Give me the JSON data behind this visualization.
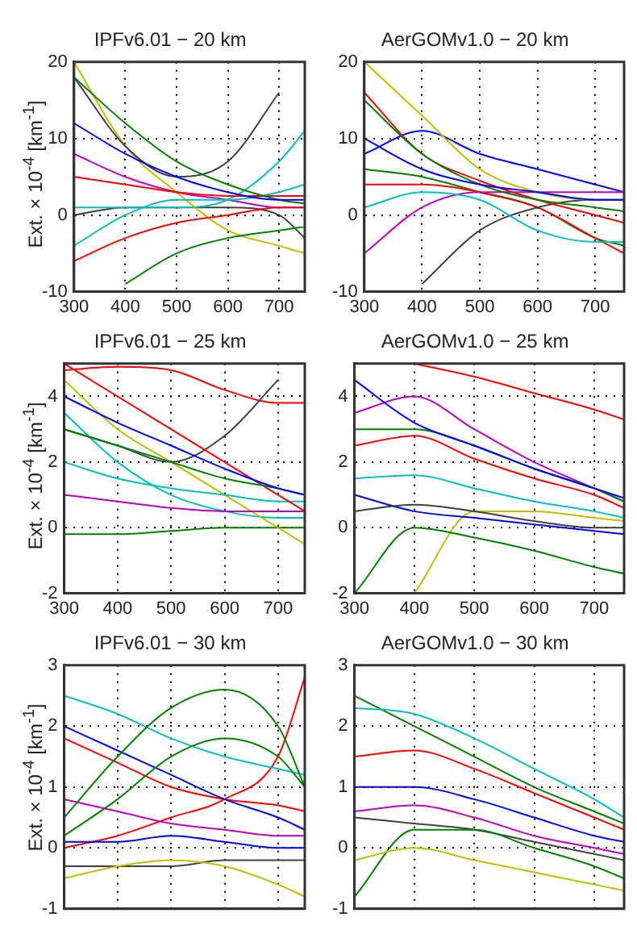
{
  "chart_data": [
    {
      "type": "line",
      "title": "IPFv6.01 − 20 km",
      "ylabel": "Ext. × 10$^{-4}$ [km$^{-1}$]",
      "x": [
        300,
        400,
        500,
        600,
        700,
        750
      ],
      "xlim": [
        300,
        750
      ],
      "xticks": [
        300,
        400,
        500,
        600,
        700
      ],
      "ylim": [
        -10,
        20
      ],
      "yticks": [
        -10,
        0,
        10,
        20
      ],
      "grid": true,
      "legend": false,
      "marker": "none",
      "line_style": "solid",
      "series": [
        {
          "color": "#0000ff",
          "values": [
            12,
            8,
            5,
            3,
            2,
            2
          ]
        },
        {
          "color": "#008000",
          "values": [
            18,
            12,
            7,
            4,
            2,
            1.5
          ]
        },
        {
          "color": "#ff0000",
          "values": [
            5,
            4,
            3,
            2.5,
            2.5,
            2.5
          ]
        },
        {
          "color": "#00bfbf",
          "values": [
            -4,
            0,
            2,
            2,
            3,
            4
          ]
        },
        {
          "color": "#404040",
          "values": [
            18,
            9,
            5,
            7,
            16,
            null
          ]
        },
        {
          "color": "#ff0000",
          "values": [
            -6,
            -3,
            -1,
            0,
            1,
            1
          ]
        },
        {
          "color": "#008000",
          "values": [
            null,
            -9,
            -5,
            -3,
            -2,
            -1.5
          ]
        },
        {
          "color": "#bf00bf",
          "values": [
            8,
            5,
            3,
            2,
            1,
            1
          ]
        },
        {
          "color": "#bfbf00",
          "values": [
            20,
            9,
            3,
            -2,
            -4,
            -5
          ]
        },
        {
          "color": "#00bfbf",
          "values": [
            1,
            1,
            1,
            2,
            7,
            11
          ]
        },
        {
          "color": "#404040",
          "values": [
            0,
            1,
            1,
            1,
            0,
            -3
          ]
        }
      ]
    },
    {
      "type": "line",
      "title": "AerGOMv1.0 − 20 km",
      "x": [
        300,
        400,
        500,
        600,
        700,
        750
      ],
      "xlim": [
        300,
        750
      ],
      "xticks": [
        300,
        400,
        500,
        600,
        700
      ],
      "ylim": [
        -10,
        20
      ],
      "yticks": [
        -10,
        0,
        10,
        20
      ],
      "grid": true,
      "legend": false,
      "marker": "none",
      "line_style": "solid",
      "series": [
        {
          "color": "#0000ff",
          "values": [
            10,
            6,
            4,
            3,
            2,
            2
          ]
        },
        {
          "color": "#008000",
          "values": [
            15,
            8,
            4,
            2,
            1,
            0.5
          ]
        },
        {
          "color": "#ff0000",
          "values": [
            16,
            8,
            4.5,
            2,
            0,
            -1
          ]
        },
        {
          "color": "#00bfbf",
          "values": [
            1,
            3,
            2,
            -2,
            -3.5,
            -3.5
          ]
        },
        {
          "color": "#bfbf00",
          "values": [
            20,
            13,
            6,
            3,
            2,
            2
          ]
        },
        {
          "color": "#bf00bf",
          "values": [
            -5,
            1,
            3,
            3,
            3,
            3
          ]
        },
        {
          "color": "#404040",
          "values": [
            null,
            -9,
            -2,
            1,
            2,
            2
          ]
        },
        {
          "color": "#ff0000",
          "values": [
            4,
            4,
            3,
            1,
            -3,
            -5
          ]
        },
        {
          "color": "#008000",
          "values": [
            6,
            5,
            3,
            1,
            -3,
            -4
          ]
        },
        {
          "color": "#0000ff",
          "values": [
            8,
            11,
            8,
            6,
            4,
            3
          ]
        }
      ]
    },
    {
      "type": "line",
      "title": "IPFv6.01 − 25 km",
      "ylabel": "Ext. × 10$^{-4}$ [km$^{-1}$]",
      "x": [
        300,
        400,
        500,
        600,
        700,
        750
      ],
      "xlim": [
        300,
        750
      ],
      "xticks": [
        300,
        400,
        500,
        600,
        700
      ],
      "ylim": [
        -2,
        5
      ],
      "yticks": [
        -2,
        0,
        2,
        4
      ],
      "grid": true,
      "legend": false,
      "marker": "none",
      "line_style": "solid",
      "series": [
        {
          "color": "#0000ff",
          "values": [
            4,
            3.2,
            2.5,
            1.8,
            1.2,
            1
          ]
        },
        {
          "color": "#008000",
          "values": [
            3,
            2.5,
            2,
            1.5,
            1.2,
            1
          ]
        },
        {
          "color": "#ff0000",
          "values": [
            5,
            4,
            3,
            2,
            1,
            0.5
          ]
        },
        {
          "color": "#00bfbf",
          "values": [
            2,
            1.5,
            1.2,
            1,
            0.8,
            0.8
          ]
        },
        {
          "color": "#bf00bf",
          "values": [
            1,
            0.8,
            0.6,
            0.5,
            0.5,
            0.5
          ]
        },
        {
          "color": "#bfbf00",
          "values": [
            4.5,
            3,
            2,
            1,
            0,
            -0.5
          ]
        },
        {
          "color": "#404040",
          "values": [
            3,
            2.5,
            2,
            2.8,
            4.5,
            null
          ]
        },
        {
          "color": "#008000",
          "values": [
            -0.2,
            -0.2,
            -0.1,
            0,
            0,
            0
          ]
        },
        {
          "color": "#ff0000",
          "values": [
            4.8,
            4.9,
            4.8,
            4.2,
            3.8,
            3.8
          ]
        },
        {
          "color": "#00bfbf",
          "values": [
            3.5,
            2,
            1,
            0.5,
            0.3,
            0.3
          ]
        }
      ]
    },
    {
      "type": "line",
      "title": "AerGOMv1.0 − 25 km",
      "x": [
        300,
        400,
        500,
        600,
        700,
        750
      ],
      "xlim": [
        300,
        750
      ],
      "xticks": [
        300,
        400,
        500,
        600,
        700
      ],
      "ylim": [
        -2,
        5
      ],
      "yticks": [
        -2,
        0,
        2,
        4
      ],
      "grid": true,
      "legend": false,
      "marker": "none",
      "line_style": "solid",
      "series": [
        {
          "color": "#ff0000",
          "values": [
            null,
            5,
            4.6,
            4.1,
            3.6,
            3.3
          ]
        },
        {
          "color": "#0000ff",
          "values": [
            4.5,
            3.2,
            2.5,
            1.8,
            1.2,
            0.9
          ]
        },
        {
          "color": "#008000",
          "values": [
            3,
            3,
            2.5,
            1.8,
            1.2,
            0.8
          ]
        },
        {
          "color": "#ff0000",
          "values": [
            2.5,
            2.8,
            2.1,
            1.5,
            1,
            0.6
          ]
        },
        {
          "color": "#00bfbf",
          "values": [
            1.5,
            1.6,
            1.2,
            0.8,
            0.5,
            0.3
          ]
        },
        {
          "color": "#bf00bf",
          "values": [
            3.5,
            4,
            3,
            2,
            1.2,
            0.8
          ]
        },
        {
          "color": "#404040",
          "values": [
            0.5,
            0.7,
            0.5,
            0.2,
            0,
            0
          ]
        },
        {
          "color": "#008000",
          "values": [
            -2,
            0,
            -0.3,
            -0.7,
            -1.2,
            -1.4
          ]
        },
        {
          "color": "#0000ff",
          "values": [
            1,
            0.5,
            0.3,
            0.1,
            -0.1,
            -0.2
          ]
        },
        {
          "color": "#bfbf00",
          "values": [
            null,
            -2,
            0.5,
            0.5,
            0.3,
            0.2
          ]
        }
      ]
    },
    {
      "type": "line",
      "title": "IPFv6.01 − 30 km",
      "ylabel": "Ext. × 10$^{-4}$ [km$^{-1}$]",
      "x": [
        300,
        400,
        500,
        600,
        700,
        750
      ],
      "xlim": [
        300,
        750
      ],
      "xticks": [
        300,
        400,
        500,
        600,
        700
      ],
      "ylim": [
        -1,
        3
      ],
      "yticks": [
        -1,
        0,
        1,
        2,
        3
      ],
      "tick_labels": "y",
      "grid": true,
      "legend": false,
      "marker": "none",
      "line_style": "solid",
      "series": [
        {
          "color": "#008000",
          "values": [
            0.5,
            1.5,
            2.3,
            2.6,
            2,
            1
          ]
        },
        {
          "color": "#008000",
          "values": [
            0.2,
            0.8,
            1.5,
            1.8,
            1.5,
            1
          ]
        },
        {
          "color": "#0000ff",
          "values": [
            2,
            1.6,
            1.2,
            0.8,
            0.5,
            0.3
          ]
        },
        {
          "color": "#ff0000",
          "values": [
            1.8,
            1.4,
            1,
            0.8,
            0.7,
            0.6
          ]
        },
        {
          "color": "#00bfbf",
          "values": [
            2.5,
            2.2,
            1.8,
            1.5,
            1.3,
            1.2
          ]
        },
        {
          "color": "#bf00bf",
          "values": [
            0.8,
            0.6,
            0.4,
            0.3,
            0.2,
            0.2
          ]
        },
        {
          "color": "#bfbf00",
          "values": [
            -0.5,
            -0.3,
            -0.2,
            -0.3,
            -0.6,
            -0.8
          ]
        },
        {
          "color": "#404040",
          "values": [
            -0.3,
            -0.3,
            -0.3,
            -0.2,
            -0.2,
            -0.2
          ]
        },
        {
          "color": "#0000ff",
          "values": [
            0.1,
            0.1,
            0.2,
            0.1,
            0,
            0
          ]
        },
        {
          "color": "#ff0000",
          "values": [
            0,
            0.2,
            0.5,
            0.8,
            1.5,
            2.8
          ]
        }
      ]
    },
    {
      "type": "line",
      "title": "AerGOMv1.0 − 30 km",
      "x": [
        300,
        400,
        500,
        600,
        700,
        750
      ],
      "xlim": [
        300,
        750
      ],
      "xticks": [
        300,
        400,
        500,
        600,
        700
      ],
      "ylim": [
        -1,
        3
      ],
      "yticks": [
        -1,
        0,
        1,
        2,
        3
      ],
      "tick_labels": "y",
      "grid": true,
      "legend": false,
      "marker": "none",
      "line_style": "solid",
      "series": [
        {
          "color": "#00bfbf",
          "values": [
            2.3,
            2.2,
            1.8,
            1.3,
            0.8,
            0.5
          ]
        },
        {
          "color": "#008000",
          "values": [
            2.5,
            2,
            1.5,
            1,
            0.6,
            0.4
          ]
        },
        {
          "color": "#ff0000",
          "values": [
            1.5,
            1.6,
            1.3,
            0.9,
            0.5,
            0.3
          ]
        },
        {
          "color": "#0000ff",
          "values": [
            1,
            1,
            0.8,
            0.5,
            0.2,
            0.1
          ]
        },
        {
          "color": "#bf00bf",
          "values": [
            0.6,
            0.7,
            0.5,
            0.2,
            0,
            -0.1
          ]
        },
        {
          "color": "#bfbf00",
          "values": [
            -0.2,
            0,
            -0.2,
            -0.4,
            -0.6,
            -0.7
          ]
        },
        {
          "color": "#008000",
          "values": [
            -0.8,
            0.3,
            0.3,
            0,
            -0.3,
            -0.5
          ]
        },
        {
          "color": "#404040",
          "values": [
            0.5,
            0.4,
            0.3,
            0.1,
            -0.1,
            -0.2
          ]
        }
      ]
    }
  ]
}
